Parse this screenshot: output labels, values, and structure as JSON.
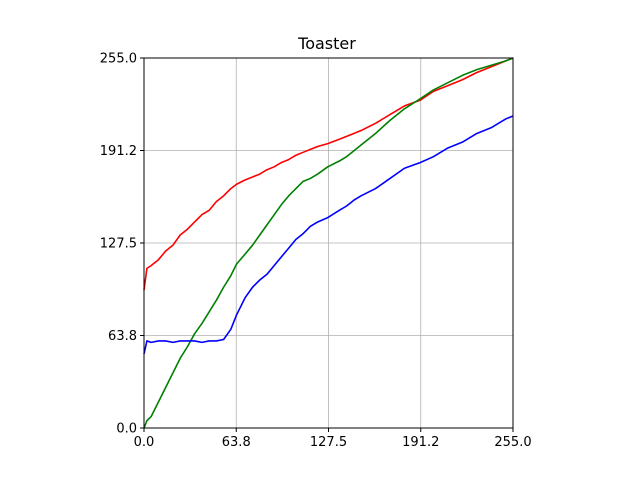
{
  "chart_data": {
    "type": "line",
    "title": "Toaster",
    "xlabel": "",
    "ylabel": "",
    "xlim": [
      0,
      255
    ],
    "ylim": [
      0,
      255
    ],
    "grid": true,
    "x_ticks": [
      "0.0",
      "63.8",
      "127.5",
      "191.2",
      "255.0"
    ],
    "y_ticks": [
      "0.0",
      "63.8",
      "127.5",
      "191.2",
      "255.0"
    ],
    "x_tick_values": [
      0,
      63.75,
      127.5,
      191.25,
      255
    ],
    "y_tick_values": [
      0,
      63.75,
      127.5,
      191.25,
      255
    ],
    "x": [
      0,
      2,
      5,
      10,
      15,
      20,
      25,
      30,
      35,
      40,
      45,
      50,
      55,
      60,
      64,
      70,
      75,
      80,
      85,
      90,
      95,
      100,
      105,
      110,
      115,
      120,
      127,
      135,
      140,
      145,
      150,
      160,
      170,
      180,
      191,
      200,
      210,
      220,
      230,
      240,
      250,
      255
    ],
    "series": [
      {
        "color": "#ff0000",
        "values": [
          95,
          110,
          112,
          116,
          122,
          126,
          133,
          137,
          142,
          147,
          150,
          156,
          160,
          165,
          168,
          171,
          173,
          175,
          178,
          180,
          183,
          185,
          188,
          190,
          192,
          194,
          196,
          199,
          201,
          203,
          205,
          210,
          216,
          222,
          226,
          232,
          236,
          240,
          245,
          249,
          253,
          255
        ]
      },
      {
        "color": "#008000",
        "values": [
          0,
          5,
          8,
          18,
          28,
          38,
          48,
          56,
          65,
          72,
          80,
          88,
          97,
          105,
          113,
          120,
          126,
          133,
          140,
          147,
          154,
          160,
          165,
          170,
          172,
          175,
          180,
          184,
          187,
          191,
          195,
          203,
          212,
          220,
          227,
          233,
          238,
          243,
          247,
          250,
          253,
          255
        ]
      },
      {
        "color": "#0000ff",
        "values": [
          51,
          60,
          59,
          60,
          60,
          59,
          60,
          60,
          60,
          59,
          60,
          60,
          61,
          68,
          78,
          90,
          97,
          102,
          106,
          112,
          118,
          124,
          130,
          134,
          139,
          142,
          145,
          150,
          153,
          157,
          160,
          165,
          172,
          179,
          183,
          187,
          193,
          197,
          203,
          207,
          213,
          215
        ]
      }
    ]
  }
}
